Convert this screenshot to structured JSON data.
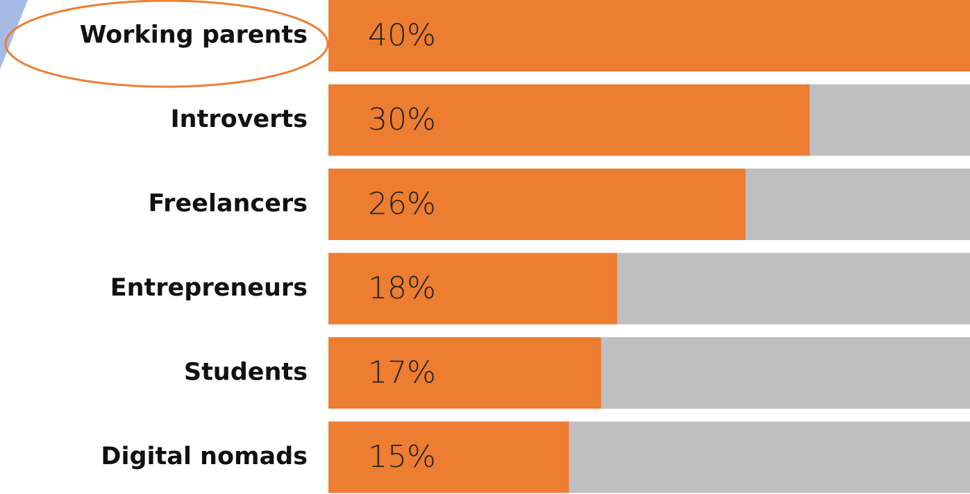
{
  "chart_data": {
    "type": "bar",
    "orientation": "horizontal",
    "categories": [
      "Working parents",
      "Introverts",
      "Freelancers",
      "Entrepreneurs",
      "Students",
      "Digital nomads"
    ],
    "values": [
      40,
      30,
      26,
      18,
      17,
      15
    ],
    "value_labels": [
      "40%",
      "30%",
      "26%",
      "18%",
      "17%",
      "15%"
    ],
    "color": "#ED7D31",
    "track_color": "#BFBFBF"
  }
}
